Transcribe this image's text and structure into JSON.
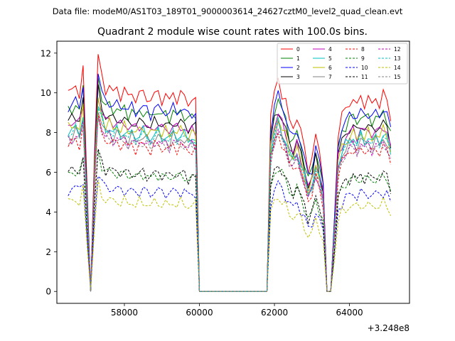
{
  "chart_data": {
    "type": "line",
    "suptitle": "Data file: modeM0/AS1T03_189T01_9000003614_24627cztM0_level2_quad_clean.evt",
    "title": "Quadrant 2 module wise count rates with 100.0s bins.",
    "xlabel": "",
    "ylabel": "",
    "x_offset_label": "+3.248e8",
    "xlim": [
      56200,
      65600
    ],
    "ylim": [
      -0.6,
      12.6
    ],
    "xticks": [
      58000,
      60000,
      62000,
      64000
    ],
    "yticks": [
      0,
      2,
      4,
      6,
      8,
      10,
      12
    ],
    "grid": false,
    "legend_location": "top-right",
    "base_x": [
      56500,
      56600,
      56700,
      56800,
      56900,
      57000,
      57100,
      57200,
      57300,
      57400,
      57500,
      57600,
      57700,
      57800,
      57900,
      58000,
      58100,
      58200,
      58300,
      58400,
      58500,
      58600,
      58700,
      58800,
      58900,
      59000,
      59100,
      59200,
      59300,
      59400,
      59500,
      59600,
      59700,
      59800,
      59900,
      60000,
      61800,
      61900,
      62000,
      62100,
      62200,
      62300,
      62400,
      62500,
      62600,
      62700,
      62800,
      62900,
      63000,
      63100,
      63200,
      63300,
      63400,
      63500,
      63600,
      63700,
      63800,
      63900,
      64000,
      64100,
      64200,
      64300,
      64400,
      64500,
      64600,
      64700,
      64800,
      64900,
      65000,
      65100
    ],
    "shape": [
      1.0,
      1.01,
      1.03,
      1.0,
      1.12,
      0.55,
      0.0,
      0.7,
      1.18,
      1.08,
      1.02,
      1.03,
      1.0,
      1.02,
      0.99,
      1.01,
      0.98,
      1.0,
      0.97,
      0.99,
      1.0,
      0.98,
      0.96,
      0.99,
      1.0,
      0.97,
      0.98,
      0.96,
      1.0,
      0.97,
      0.99,
      0.98,
      0.95,
      0.97,
      0.96,
      0.0,
      0.0,
      0.88,
      1.0,
      1.07,
      1.0,
      0.95,
      0.86,
      0.83,
      0.88,
      0.8,
      0.72,
      0.62,
      0.67,
      0.78,
      0.7,
      0.58,
      0.0,
      0.0,
      0.38,
      0.8,
      0.88,
      0.92,
      0.95,
      0.97,
      0.93,
      0.98,
      0.95,
      0.97,
      0.94,
      0.97,
      0.95,
      0.99,
      0.96,
      0.87
    ],
    "series": [
      {
        "name": "0",
        "color": "#ff0000",
        "dash": "solid",
        "level": 10.0,
        "phase": 0
      },
      {
        "name": "1",
        "color": "#008000",
        "dash": "solid",
        "level": 9.1,
        "phase": 1
      },
      {
        "name": "2",
        "color": "#0000ff",
        "dash": "solid",
        "level": 9.3,
        "phase": 2
      },
      {
        "name": "3",
        "color": "#000000",
        "dash": "solid",
        "level": 8.6,
        "phase": 3
      },
      {
        "name": "4",
        "color": "#bf00bf",
        "dash": "solid",
        "level": 8.4,
        "phase": 4
      },
      {
        "name": "5",
        "color": "#00bfbf",
        "dash": "solid",
        "level": 8.0,
        "phase": 5
      },
      {
        "name": "6",
        "color": "#bfbf00",
        "dash": "solid",
        "level": 8.2,
        "phase": 6
      },
      {
        "name": "7",
        "color": "#808080",
        "dash": "solid",
        "level": 7.8,
        "phase": 7
      },
      {
        "name": "8",
        "color": "#ff0000",
        "dash": "dashed",
        "level": 7.4,
        "phase": 8
      },
      {
        "name": "9",
        "color": "#008000",
        "dash": "dashed",
        "level": 5.9,
        "phase": 9
      },
      {
        "name": "10",
        "color": "#0000ff",
        "dash": "dashed",
        "level": 5.1,
        "phase": 10
      },
      {
        "name": "11",
        "color": "#000000",
        "dash": "dashed",
        "level": 6.0,
        "phase": 11
      },
      {
        "name": "12",
        "color": "#bf00bf",
        "dash": "dashed",
        "level": 7.6,
        "phase": 12
      },
      {
        "name": "13",
        "color": "#00bfbf",
        "dash": "dashed",
        "level": 7.9,
        "phase": 13
      },
      {
        "name": "14",
        "color": "#bfbf00",
        "dash": "dashed",
        "level": 4.5,
        "phase": 14
      },
      {
        "name": "15",
        "color": "#808080",
        "dash": "dashed",
        "level": 7.5,
        "phase": 15
      }
    ]
  }
}
